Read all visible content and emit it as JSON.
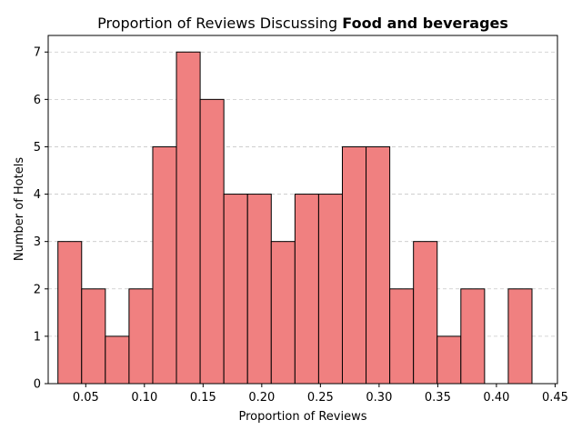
{
  "chart_data": {
    "type": "bar",
    "title": "Proportion of Reviews Discussing",
    "title_bold": "Food and beverages",
    "xlabel": "Proportion of Reviews",
    "ylabel": "Number of Hotels",
    "xlim": [
      0.018,
      0.452
    ],
    "ylim": [
      0,
      7.35
    ],
    "x_ticks": [
      0.05,
      0.1,
      0.15,
      0.2,
      0.25,
      0.3,
      0.35,
      0.4,
      0.45
    ],
    "x_tick_labels": [
      "0.05",
      "0.10",
      "0.15",
      "0.20",
      "0.25",
      "0.30",
      "0.35",
      "0.40",
      "0.45"
    ],
    "y_ticks": [
      0,
      1,
      2,
      3,
      4,
      5,
      6,
      7
    ],
    "y_tick_labels": [
      "0",
      "1",
      "2",
      "3",
      "4",
      "5",
      "6",
      "7"
    ],
    "grid": "y-dashed",
    "bar_color": "#f08080",
    "edge_color": "#000000",
    "bins": [
      {
        "x0": 0.0263,
        "x1": 0.0465,
        "count": 3
      },
      {
        "x0": 0.0465,
        "x1": 0.0667,
        "count": 2
      },
      {
        "x0": 0.0667,
        "x1": 0.0869,
        "count": 1
      },
      {
        "x0": 0.0869,
        "x1": 0.1071,
        "count": 2
      },
      {
        "x0": 0.1071,
        "x1": 0.1273,
        "count": 5
      },
      {
        "x0": 0.1273,
        "x1": 0.1475,
        "count": 7
      },
      {
        "x0": 0.1475,
        "x1": 0.1677,
        "count": 6
      },
      {
        "x0": 0.1677,
        "x1": 0.1879,
        "count": 4
      },
      {
        "x0": 0.1879,
        "x1": 0.2081,
        "count": 4
      },
      {
        "x0": 0.2081,
        "x1": 0.2283,
        "count": 3
      },
      {
        "x0": 0.2283,
        "x1": 0.2485,
        "count": 4
      },
      {
        "x0": 0.2485,
        "x1": 0.2687,
        "count": 4
      },
      {
        "x0": 0.2687,
        "x1": 0.2889,
        "count": 5
      },
      {
        "x0": 0.2889,
        "x1": 0.3091,
        "count": 5
      },
      {
        "x0": 0.3091,
        "x1": 0.3293,
        "count": 2
      },
      {
        "x0": 0.3293,
        "x1": 0.3495,
        "count": 3
      },
      {
        "x0": 0.3495,
        "x1": 0.3697,
        "count": 1
      },
      {
        "x0": 0.3697,
        "x1": 0.3899,
        "count": 2
      },
      {
        "x0": 0.3899,
        "x1": 0.4101,
        "count": 0
      },
      {
        "x0": 0.4101,
        "x1": 0.4303,
        "count": 2
      }
    ]
  }
}
